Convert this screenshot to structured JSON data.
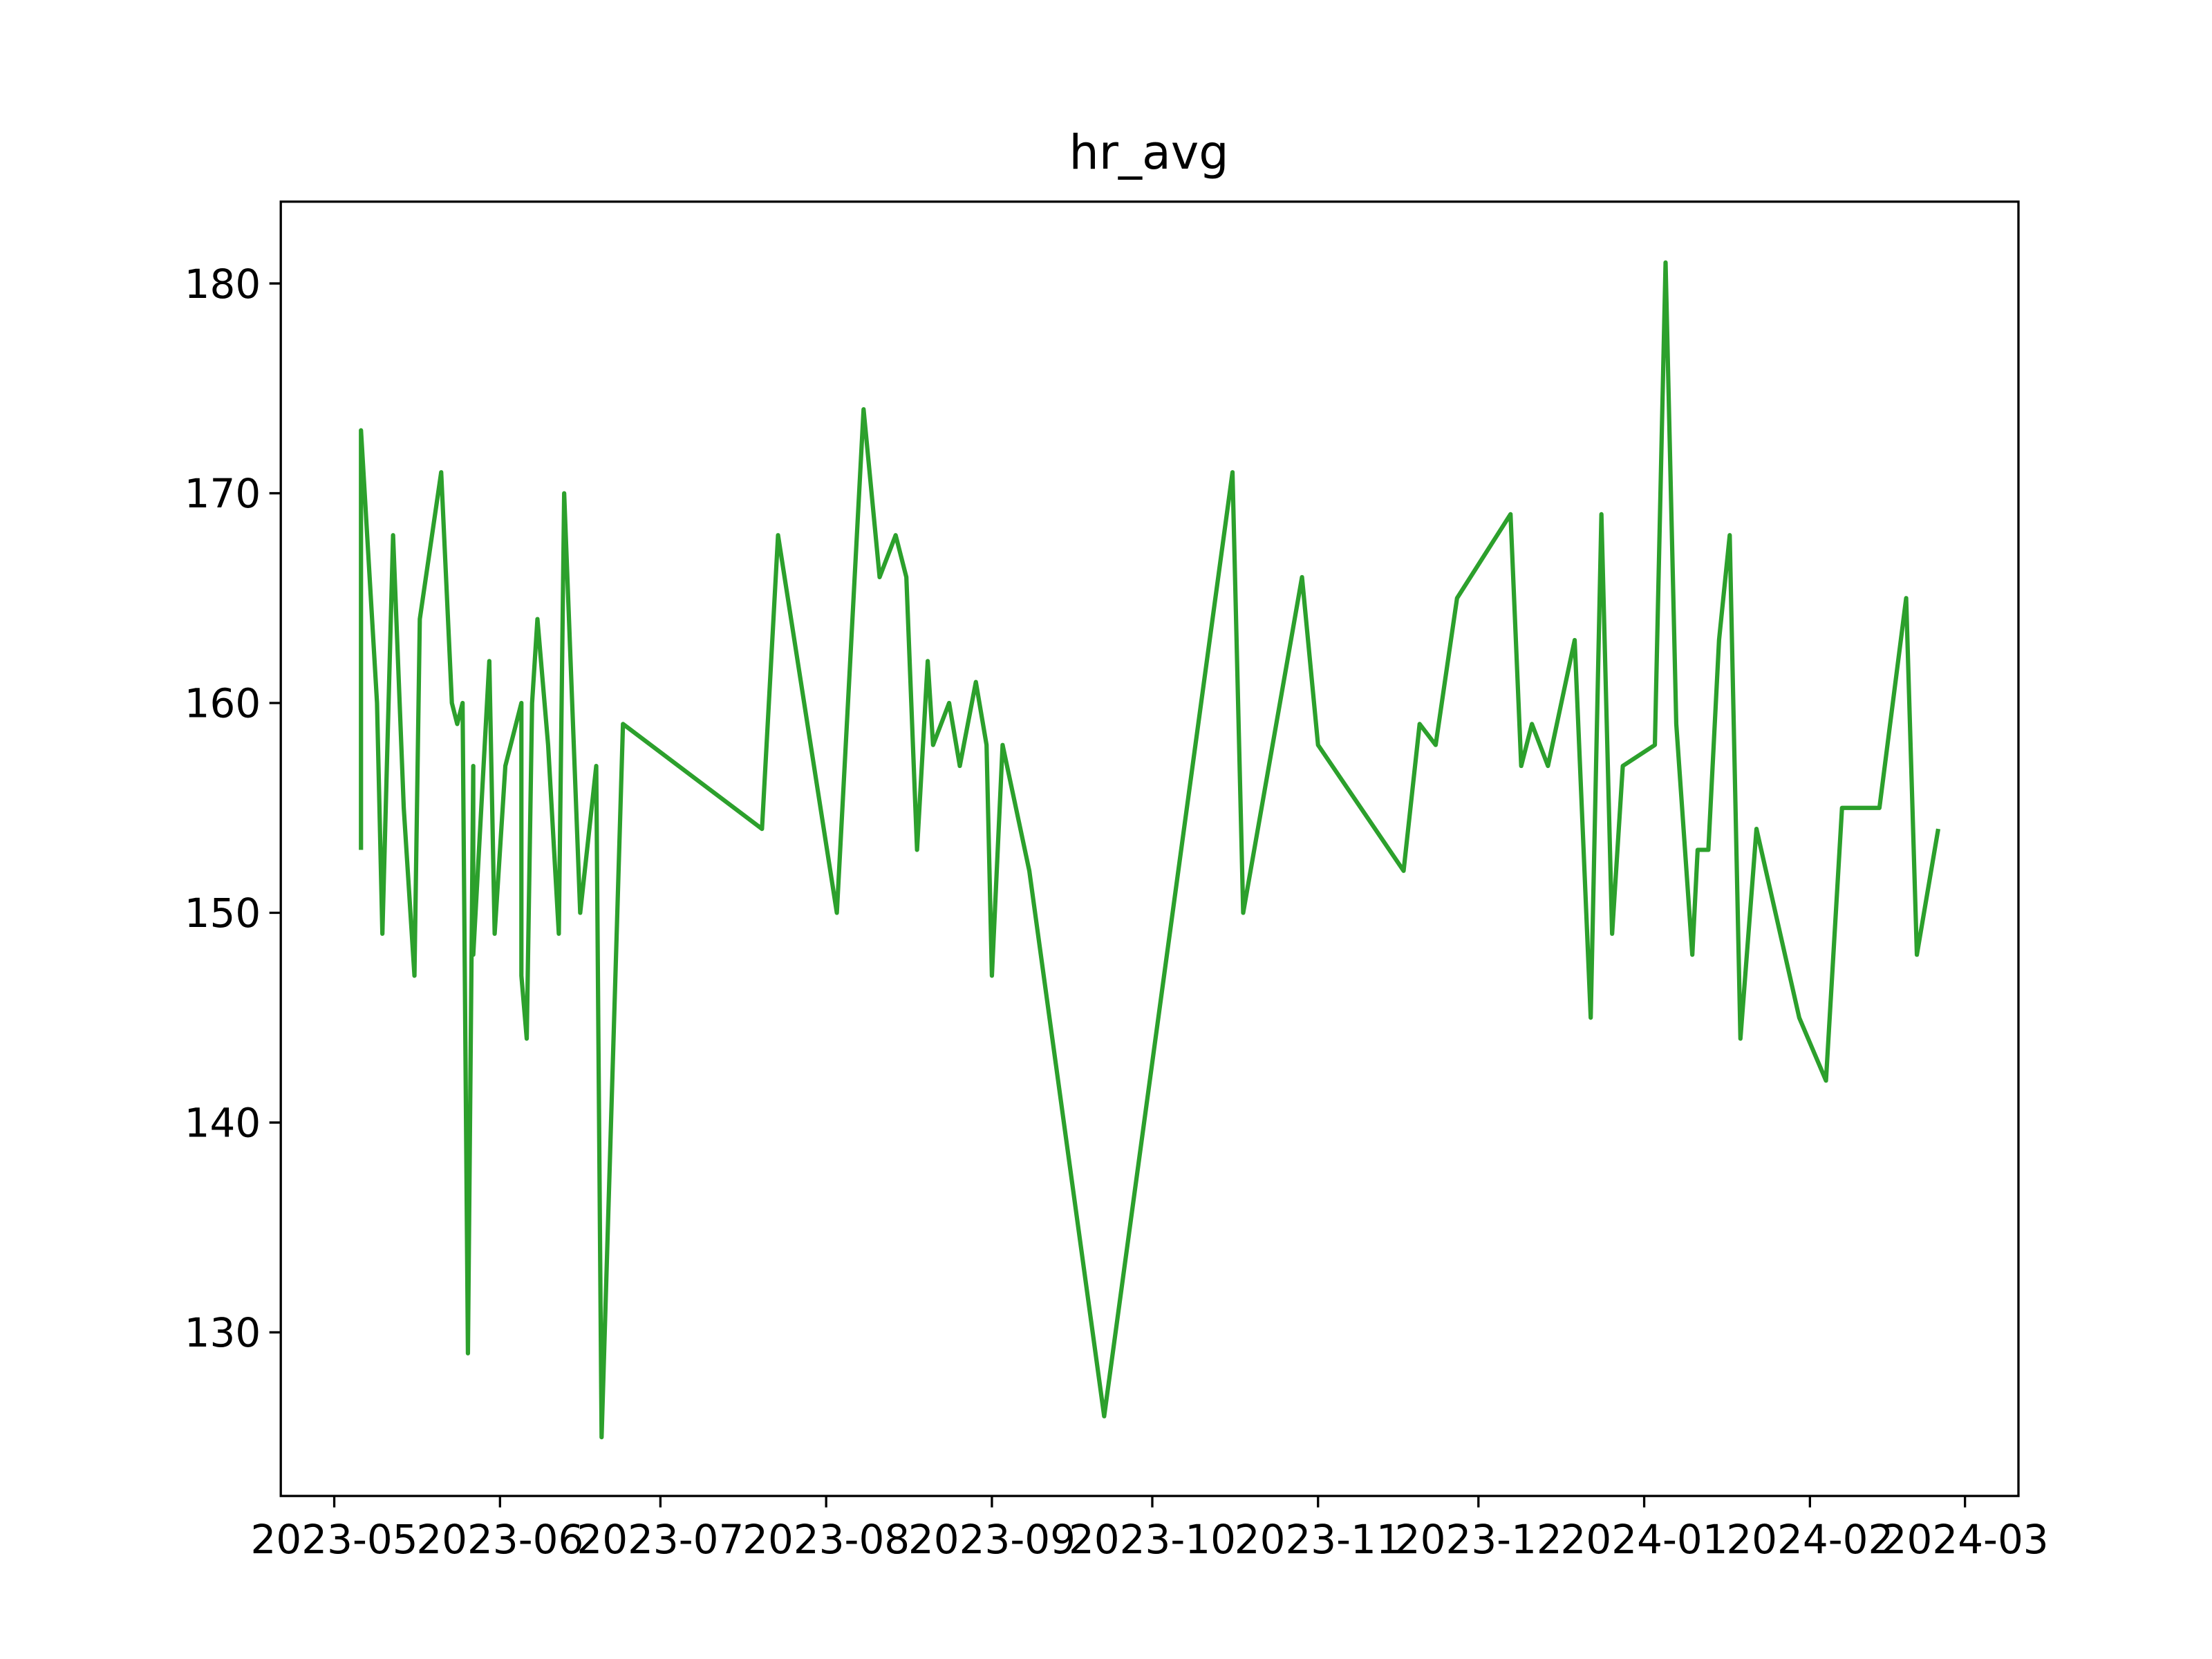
{
  "chart_data": {
    "type": "line",
    "title": "hr_avg",
    "x": [
      "2023-05-06",
      "2023-05-06",
      "2023-05-09",
      "2023-05-10",
      "2023-05-12",
      "2023-05-14",
      "2023-05-16",
      "2023-05-17",
      "2023-05-21",
      "2023-05-23",
      "2023-05-24",
      "2023-05-25",
      "2023-05-26",
      "2023-05-27",
      "2023-05-27",
      "2023-05-30",
      "2023-05-31",
      "2023-06-02",
      "2023-06-05",
      "2023-06-05",
      "2023-06-06",
      "2023-06-07",
      "2023-06-08",
      "2023-06-10",
      "2023-06-12",
      "2023-06-13",
      "2023-06-16",
      "2023-06-19",
      "2023-06-20",
      "2023-06-24",
      "2023-07-20",
      "2023-07-23",
      "2023-08-03",
      "2023-08-08",
      "2023-08-11",
      "2023-08-14",
      "2023-08-16",
      "2023-08-18",
      "2023-08-20",
      "2023-08-21",
      "2023-08-24",
      "2023-08-26",
      "2023-08-29",
      "2023-08-31",
      "2023-09-01",
      "2023-09-03",
      "2023-09-08",
      "2023-09-22",
      "2023-10-16",
      "2023-10-18",
      "2023-10-29",
      "2023-11-01",
      "2023-11-17",
      "2023-11-20",
      "2023-11-23",
      "2023-11-27",
      "2023-12-07",
      "2023-12-09",
      "2023-12-11",
      "2023-12-14",
      "2023-12-19",
      "2023-12-22",
      "2023-12-24",
      "2023-12-26",
      "2023-12-28",
      "2024-01-03",
      "2024-01-05",
      "2024-01-07",
      "2024-01-10",
      "2024-01-11",
      "2024-01-13",
      "2024-01-15",
      "2024-01-17",
      "2024-01-19",
      "2024-01-22",
      "2024-01-30",
      "2024-02-04",
      "2024-02-07",
      "2024-02-14",
      "2024-02-19",
      "2024-02-21",
      "2024-02-25"
    ],
    "series": [
      {
        "name": "hr_avg",
        "color": "#2ca02c",
        "values": [
          153,
          173,
          160,
          149,
          168,
          155,
          147,
          164,
          171,
          160,
          159,
          160,
          129,
          157,
          148,
          162,
          149,
          157,
          160,
          147,
          144,
          160,
          164,
          158,
          149,
          170,
          150,
          157,
          125,
          159,
          154,
          168,
          150,
          174,
          166,
          168,
          166,
          153,
          162,
          158,
          160,
          157,
          161,
          158,
          147,
          158,
          152,
          126,
          171,
          150,
          166,
          158,
          152,
          159,
          158,
          165,
          169,
          157,
          159,
          157,
          163,
          145,
          169,
          149,
          157,
          158,
          181,
          159,
          148,
          153,
          153,
          163,
          168,
          144,
          154,
          145,
          142,
          155,
          155,
          165,
          148,
          154
        ]
      }
    ],
    "xlim": [
      "2023-04-21",
      "2024-03-11"
    ],
    "xticks": [
      {
        "value": "2023-05-01",
        "label": "2023-05"
      },
      {
        "value": "2023-06-01",
        "label": "2023-06"
      },
      {
        "value": "2023-07-01",
        "label": "2023-07"
      },
      {
        "value": "2023-08-01",
        "label": "2023-08"
      },
      {
        "value": "2023-09-01",
        "label": "2023-09"
      },
      {
        "value": "2023-10-01",
        "label": "2023-10"
      },
      {
        "value": "2023-11-01",
        "label": "2023-11"
      },
      {
        "value": "2023-12-01",
        "label": "2023-12"
      },
      {
        "value": "2024-01-01",
        "label": "2024-01"
      },
      {
        "value": "2024-02-01",
        "label": "2024-02"
      },
      {
        "value": "2024-03-01",
        "label": "2024-03"
      }
    ],
    "ylim": [
      122.2,
      183.9
    ],
    "yticks": [
      130,
      140,
      150,
      160,
      170,
      180
    ],
    "grid": false
  }
}
